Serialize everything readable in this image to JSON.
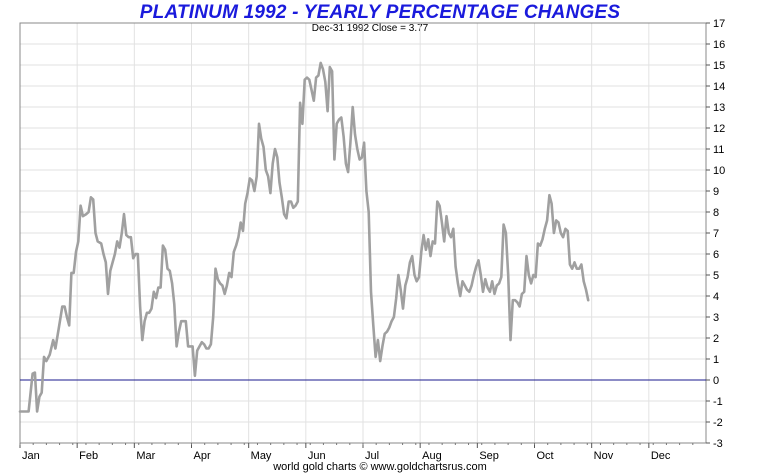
{
  "chart_data": {
    "type": "line",
    "title": "PLATINUM 1992 - YEARLY PERCENTAGE CHANGES",
    "subtitle": "Dec-31  1992   Close = 3.77",
    "credit": "world gold charts © www.goldchartsrus.com",
    "xlabel": "",
    "ylabel": "",
    "ylim": [
      -3,
      17
    ],
    "yticks": [
      -3,
      -2,
      -1,
      0,
      1,
      2,
      3,
      4,
      5,
      6,
      7,
      8,
      9,
      10,
      11,
      12,
      13,
      14,
      15,
      16,
      17
    ],
    "xlim": [
      0,
      12
    ],
    "months": [
      {
        "label": "Jan",
        "x": 0
      },
      {
        "label": "Feb",
        "x": 1
      },
      {
        "label": "Mar",
        "x": 2
      },
      {
        "label": "Apr",
        "x": 3
      },
      {
        "label": "May",
        "x": 4
      },
      {
        "label": "Jun",
        "x": 5
      },
      {
        "label": "Jul",
        "x": 6
      },
      {
        "label": "Aug",
        "x": 7
      },
      {
        "label": "Sep",
        "x": 8
      },
      {
        "label": "Oct",
        "x": 9
      },
      {
        "label": "Nov",
        "x": 10
      },
      {
        "label": "Dec",
        "x": 11
      }
    ],
    "zero_line": 0,
    "grid": true,
    "series": [
      {
        "color": "#a0a0a0",
        "zero_line_color": "#1a1a8c",
        "points": [
          [
            0.0,
            -1.5
          ],
          [
            0.08,
            -1.5
          ],
          [
            0.15,
            -1.5
          ],
          [
            0.22,
            0.3
          ],
          [
            0.26,
            0.35
          ],
          [
            0.3,
            -1.5
          ],
          [
            0.34,
            -0.8
          ],
          [
            0.38,
            -0.6
          ],
          [
            0.42,
            1.1
          ],
          [
            0.46,
            0.9
          ],
          [
            0.52,
            1.2
          ],
          [
            0.58,
            1.9
          ],
          [
            0.62,
            1.5
          ],
          [
            0.68,
            2.5
          ],
          [
            0.74,
            3.5
          ],
          [
            0.78,
            3.5
          ],
          [
            0.82,
            3.0
          ],
          [
            0.86,
            2.6
          ],
          [
            0.9,
            5.1
          ],
          [
            0.94,
            5.1
          ],
          [
            0.98,
            6.1
          ],
          [
            1.02,
            6.6
          ],
          [
            1.06,
            8.3
          ],
          [
            1.1,
            7.8
          ],
          [
            1.16,
            7.9
          ],
          [
            1.2,
            8.0
          ],
          [
            1.24,
            8.7
          ],
          [
            1.28,
            8.6
          ],
          [
            1.32,
            7.0
          ],
          [
            1.36,
            6.6
          ],
          [
            1.42,
            6.5
          ],
          [
            1.46,
            6.0
          ],
          [
            1.5,
            5.6
          ],
          [
            1.54,
            4.1
          ],
          [
            1.58,
            5.2
          ],
          [
            1.62,
            5.6
          ],
          [
            1.66,
            6.0
          ],
          [
            1.7,
            6.6
          ],
          [
            1.74,
            6.3
          ],
          [
            1.78,
            7.0
          ],
          [
            1.82,
            7.9
          ],
          [
            1.86,
            6.9
          ],
          [
            1.9,
            6.8
          ],
          [
            1.94,
            6.8
          ],
          [
            1.98,
            5.8
          ],
          [
            2.02,
            6.0
          ],
          [
            2.06,
            6.0
          ],
          [
            2.1,
            3.5
          ],
          [
            2.14,
            1.9
          ],
          [
            2.18,
            2.8
          ],
          [
            2.22,
            3.2
          ],
          [
            2.26,
            3.2
          ],
          [
            2.3,
            3.4
          ],
          [
            2.34,
            4.2
          ],
          [
            2.38,
            3.9
          ],
          [
            2.42,
            4.4
          ],
          [
            2.46,
            4.4
          ],
          [
            2.5,
            6.4
          ],
          [
            2.54,
            6.2
          ],
          [
            2.58,
            5.3
          ],
          [
            2.62,
            5.2
          ],
          [
            2.66,
            4.6
          ],
          [
            2.7,
            3.6
          ],
          [
            2.74,
            1.6
          ],
          [
            2.78,
            2.3
          ],
          [
            2.82,
            2.8
          ],
          [
            2.86,
            2.8
          ],
          [
            2.9,
            2.8
          ],
          [
            2.94,
            1.6
          ],
          [
            2.98,
            1.6
          ],
          [
            3.02,
            1.6
          ],
          [
            3.06,
            0.2
          ],
          [
            3.1,
            1.4
          ],
          [
            3.14,
            1.6
          ],
          [
            3.18,
            1.8
          ],
          [
            3.22,
            1.7
          ],
          [
            3.26,
            1.5
          ],
          [
            3.3,
            1.5
          ],
          [
            3.34,
            1.7
          ],
          [
            3.38,
            3.0
          ],
          [
            3.42,
            5.3
          ],
          [
            3.46,
            4.8
          ],
          [
            3.5,
            4.6
          ],
          [
            3.54,
            4.5
          ],
          [
            3.58,
            4.1
          ],
          [
            3.62,
            4.5
          ],
          [
            3.66,
            5.1
          ],
          [
            3.7,
            4.9
          ],
          [
            3.74,
            6.1
          ],
          [
            3.78,
            6.4
          ],
          [
            3.82,
            6.8
          ],
          [
            3.86,
            7.5
          ],
          [
            3.9,
            7.1
          ],
          [
            3.94,
            8.4
          ],
          [
            3.98,
            8.9
          ],
          [
            4.02,
            9.6
          ],
          [
            4.06,
            9.5
          ],
          [
            4.1,
            9.0
          ],
          [
            4.14,
            9.7
          ],
          [
            4.18,
            12.2
          ],
          [
            4.22,
            11.5
          ],
          [
            4.26,
            11.1
          ],
          [
            4.3,
            10.0
          ],
          [
            4.34,
            9.7
          ],
          [
            4.38,
            8.9
          ],
          [
            4.42,
            10.3
          ],
          [
            4.46,
            11.0
          ],
          [
            4.5,
            10.6
          ],
          [
            4.54,
            9.4
          ],
          [
            4.58,
            8.7
          ],
          [
            4.62,
            7.9
          ],
          [
            4.66,
            7.7
          ],
          [
            4.7,
            8.5
          ],
          [
            4.74,
            8.5
          ],
          [
            4.78,
            8.2
          ],
          [
            4.82,
            8.3
          ],
          [
            4.86,
            8.5
          ],
          [
            4.9,
            13.2
          ],
          [
            4.94,
            12.2
          ],
          [
            4.98,
            14.3
          ],
          [
            5.02,
            14.4
          ],
          [
            5.06,
            14.3
          ],
          [
            5.1,
            13.8
          ],
          [
            5.14,
            13.3
          ],
          [
            5.18,
            14.4
          ],
          [
            5.22,
            14.5
          ],
          [
            5.26,
            15.1
          ],
          [
            5.3,
            14.8
          ],
          [
            5.34,
            14.2
          ],
          [
            5.38,
            12.8
          ],
          [
            5.42,
            14.9
          ],
          [
            5.46,
            14.7
          ],
          [
            5.5,
            10.5
          ],
          [
            5.54,
            12.2
          ],
          [
            5.58,
            12.4
          ],
          [
            5.62,
            12.5
          ],
          [
            5.66,
            11.6
          ],
          [
            5.7,
            10.3
          ],
          [
            5.74,
            9.9
          ],
          [
            5.78,
            11.3
          ],
          [
            5.82,
            13.0
          ],
          [
            5.86,
            11.7
          ],
          [
            5.9,
            11.0
          ],
          [
            5.94,
            10.5
          ],
          [
            5.98,
            10.6
          ],
          [
            6.02,
            11.3
          ],
          [
            6.06,
            9.0
          ],
          [
            6.1,
            8.0
          ],
          [
            6.14,
            4.2
          ],
          [
            6.18,
            2.6
          ],
          [
            6.22,
            1.1
          ],
          [
            6.26,
            1.9
          ],
          [
            6.3,
            0.9
          ],
          [
            6.34,
            1.6
          ],
          [
            6.38,
            2.2
          ],
          [
            6.42,
            2.3
          ],
          [
            6.46,
            2.5
          ],
          [
            6.5,
            2.8
          ],
          [
            6.54,
            3.0
          ],
          [
            6.58,
            3.9
          ],
          [
            6.62,
            5.0
          ],
          [
            6.66,
            4.3
          ],
          [
            6.7,
            3.4
          ],
          [
            6.74,
            4.5
          ],
          [
            6.78,
            4.9
          ],
          [
            6.82,
            5.6
          ],
          [
            6.86,
            5.9
          ],
          [
            6.9,
            5.0
          ],
          [
            6.94,
            4.7
          ],
          [
            6.98,
            4.9
          ],
          [
            7.02,
            6.1
          ],
          [
            7.06,
            6.9
          ],
          [
            7.1,
            6.2
          ],
          [
            7.14,
            6.7
          ],
          [
            7.18,
            5.9
          ],
          [
            7.22,
            6.6
          ],
          [
            7.26,
            6.5
          ],
          [
            7.3,
            8.5
          ],
          [
            7.34,
            8.3
          ],
          [
            7.38,
            7.5
          ],
          [
            7.42,
            6.6
          ],
          [
            7.46,
            7.8
          ],
          [
            7.5,
            7.0
          ],
          [
            7.54,
            6.8
          ],
          [
            7.58,
            7.2
          ],
          [
            7.62,
            5.4
          ],
          [
            7.66,
            4.6
          ],
          [
            7.7,
            4.0
          ],
          [
            7.74,
            4.7
          ],
          [
            7.78,
            4.5
          ],
          [
            7.82,
            4.3
          ],
          [
            7.86,
            4.2
          ],
          [
            7.9,
            4.5
          ],
          [
            7.94,
            5.0
          ],
          [
            7.98,
            5.4
          ],
          [
            8.02,
            5.7
          ],
          [
            8.06,
            5.0
          ],
          [
            8.1,
            4.2
          ],
          [
            8.14,
            4.8
          ],
          [
            8.18,
            4.4
          ],
          [
            8.22,
            4.2
          ],
          [
            8.26,
            4.7
          ],
          [
            8.3,
            4.1
          ],
          [
            8.34,
            4.5
          ],
          [
            8.38,
            4.6
          ],
          [
            8.42,
            4.9
          ],
          [
            8.46,
            7.4
          ],
          [
            8.5,
            7.0
          ],
          [
            8.54,
            5.0
          ],
          [
            8.58,
            1.9
          ],
          [
            8.62,
            3.8
          ],
          [
            8.66,
            3.8
          ],
          [
            8.7,
            3.7
          ],
          [
            8.74,
            3.5
          ],
          [
            8.78,
            4.1
          ],
          [
            8.82,
            4.2
          ],
          [
            8.86,
            5.9
          ],
          [
            8.9,
            5.0
          ],
          [
            8.94,
            4.6
          ],
          [
            8.98,
            5.0
          ],
          [
            9.02,
            4.9
          ],
          [
            9.06,
            6.5
          ],
          [
            9.1,
            6.4
          ],
          [
            9.14,
            6.7
          ],
          [
            9.18,
            7.2
          ],
          [
            9.22,
            7.6
          ],
          [
            9.26,
            8.8
          ],
          [
            9.3,
            8.4
          ],
          [
            9.34,
            7.0
          ],
          [
            9.38,
            7.6
          ],
          [
            9.42,
            7.5
          ],
          [
            9.46,
            7.0
          ],
          [
            9.5,
            6.8
          ],
          [
            9.54,
            7.2
          ],
          [
            9.58,
            7.1
          ],
          [
            9.62,
            5.5
          ],
          [
            9.66,
            5.3
          ],
          [
            9.7,
            5.6
          ],
          [
            9.74,
            5.3
          ],
          [
            9.78,
            5.3
          ],
          [
            9.82,
            5.5
          ],
          [
            9.86,
            4.7
          ],
          [
            9.9,
            4.3
          ],
          [
            9.94,
            3.8
          ]
        ]
      }
    ]
  }
}
